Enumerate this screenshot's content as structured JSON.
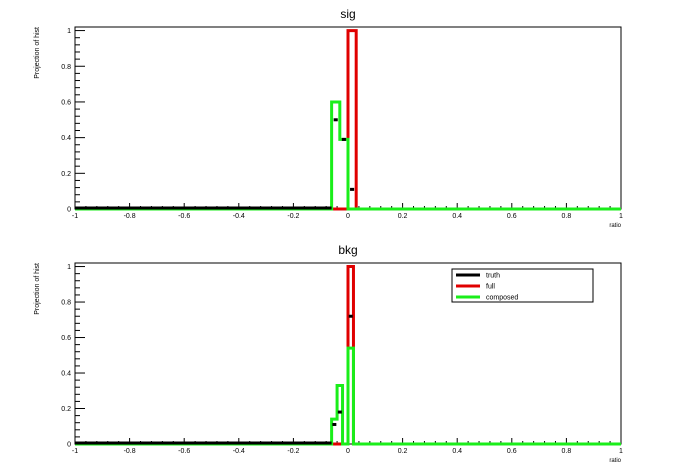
{
  "colors": {
    "truth": "#000000",
    "full": "#e00000",
    "composed": "#1aee1a"
  },
  "legend": {
    "placement": "top-right-of-bottom-pad",
    "entries": [
      "truth",
      "full",
      "composed"
    ]
  },
  "chart_data": [
    {
      "type": "histogram",
      "title": "sig",
      "xlabel": "ratio",
      "ylabel": "Projection of hist",
      "xlim": [
        -1,
        1
      ],
      "ylim": [
        0,
        1.02
      ],
      "x_ticks": [
        "-1",
        "-0.8",
        "-0.6",
        "-0.4",
        "-0.2",
        "0",
        "0.2",
        "0.4",
        "0.6",
        "0.8",
        "1"
      ],
      "y_ticks": [
        "0",
        "0.2",
        "0.4",
        "0.6",
        "0.8",
        "1"
      ],
      "bin_edges": [
        -0.06,
        -0.03,
        0.0,
        0.03
      ],
      "series": [
        {
          "name": "truth",
          "values": [
            0.5,
            0.39,
            0.11
          ]
        },
        {
          "name": "full",
          "values": [
            0.0,
            0.0,
            1.0
          ]
        },
        {
          "name": "composed",
          "values": [
            0.6,
            0.39,
            0.0
          ]
        }
      ]
    },
    {
      "type": "histogram",
      "title": "bkg",
      "xlabel": "ratio",
      "ylabel": "Projection of hist",
      "xlim": [
        -1,
        1
      ],
      "ylim": [
        0,
        1.02
      ],
      "x_ticks": [
        "-1",
        "-0.8",
        "-0.6",
        "-0.4",
        "-0.2",
        "0",
        "0.2",
        "0.4",
        "0.6",
        "0.8",
        "1"
      ],
      "y_ticks": [
        "0",
        "0.2",
        "0.4",
        "0.6",
        "0.8",
        "1"
      ],
      "bin_edges": [
        -0.06,
        -0.04,
        -0.02,
        0.0,
        0.02,
        0.04
      ],
      "series": [
        {
          "name": "truth",
          "values": [
            0.11,
            0.18,
            0.0,
            0.72,
            0.0
          ]
        },
        {
          "name": "full",
          "values": [
            0.0,
            0.0,
            0.0,
            1.0,
            0.0
          ]
        },
        {
          "name": "composed",
          "values": [
            0.14,
            0.33,
            0.0,
            0.54,
            0.0
          ]
        }
      ]
    }
  ]
}
